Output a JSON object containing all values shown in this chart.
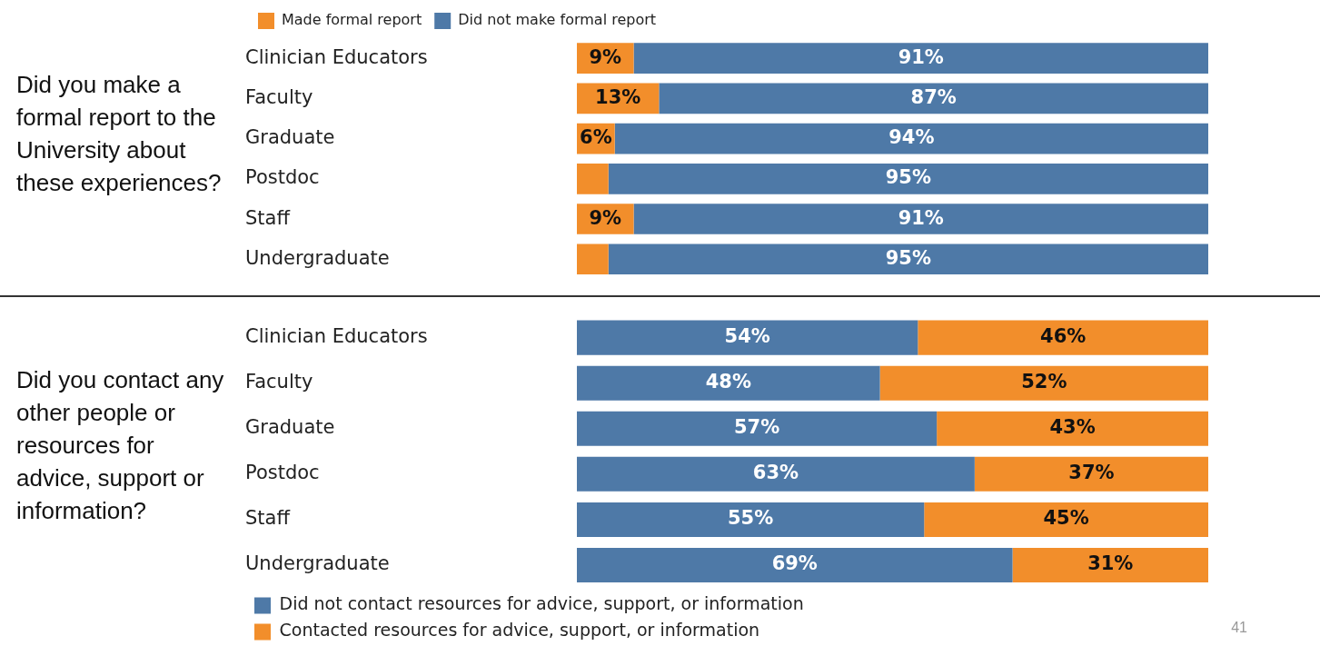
{
  "chart_data": [
    {
      "type": "bar",
      "orientation": "horizontal",
      "stacked": true,
      "title": "Did you make a formal report to the University about these experiences?",
      "categories": [
        "Clinician Educators",
        "Faculty",
        "Graduate",
        "Postdoc",
        "Staff",
        "Undergraduate"
      ],
      "series": [
        {
          "name": "Made formal report",
          "color": "#f28e2b",
          "values": [
            9,
            13,
            6,
            5,
            9,
            5
          ],
          "value_labels": [
            "9%",
            "13%",
            "6%",
            null,
            "9%",
            null
          ]
        },
        {
          "name": "Did not make formal report",
          "color": "#4e79a7",
          "values": [
            91,
            87,
            94,
            95,
            91,
            95
          ],
          "value_labels": [
            "91%",
            "87%",
            "94%",
            "95%",
            "91%",
            "95%"
          ]
        }
      ],
      "xlim": [
        0,
        100
      ],
      "tick_labels": "y",
      "grid": false,
      "legend": "top"
    },
    {
      "type": "bar",
      "orientation": "horizontal",
      "stacked": true,
      "title": "Did you contact any other people or resources for advice, support or information?",
      "categories": [
        "Clinician Educators",
        "Faculty",
        "Graduate",
        "Postdoc",
        "Staff",
        "Undergraduate"
      ],
      "series": [
        {
          "name": "Did not contact resources for advice, support, or information",
          "color": "#4e79a7",
          "values": [
            54,
            48,
            57,
            63,
            55,
            69
          ],
          "value_labels": [
            "54%",
            "48%",
            "57%",
            "63%",
            "55%",
            "69%"
          ]
        },
        {
          "name": "Contacted resources for advice, support, or information",
          "color": "#f28e2b",
          "values": [
            46,
            52,
            43,
            37,
            45,
            31
          ],
          "value_labels": [
            "46%",
            "52%",
            "43%",
            "37%",
            "45%",
            "31%"
          ]
        }
      ],
      "xlim": [
        0,
        100
      ],
      "tick_labels": "y",
      "grid": false,
      "legend": "bottom",
      "annotations": [
        "41"
      ]
    }
  ]
}
